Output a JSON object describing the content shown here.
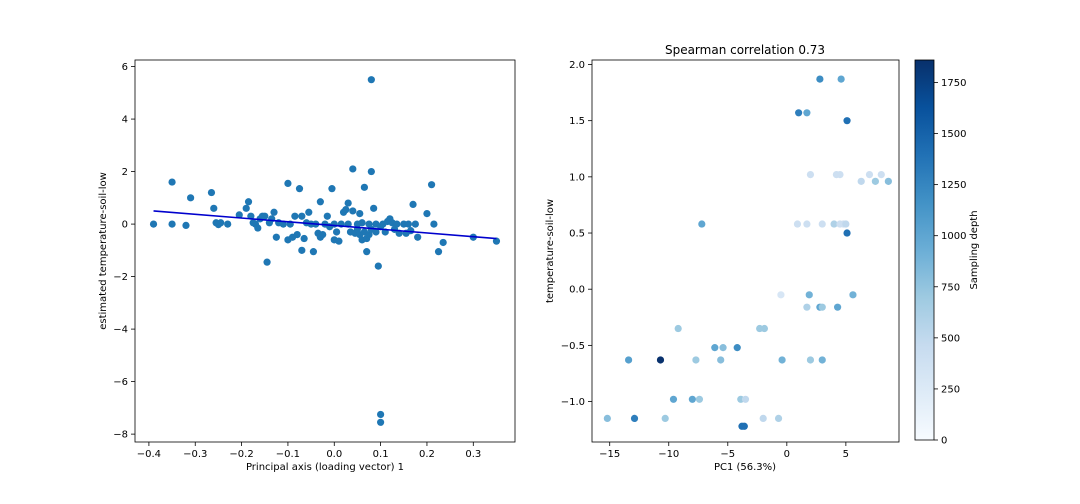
{
  "chart_data": [
    {
      "type": "scatter",
      "title": "",
      "xlabel": "Principal axis (loading vector) 1",
      "ylabel": "estimated temperature-soil-low",
      "xlim": [
        -0.43,
        0.39
      ],
      "ylim": [
        -8.3,
        6.25
      ],
      "xticks": [
        -0.4,
        -0.3,
        -0.2,
        -0.1,
        0.0,
        0.1,
        0.2,
        0.3
      ],
      "xtick_labels": [
        "−0.4",
        "−0.3",
        "−0.2",
        "−0.1",
        "0.0",
        "0.1",
        "0.2",
        "0.3"
      ],
      "yticks": [
        -8,
        -6,
        -4,
        -2,
        0,
        2,
        4,
        6
      ],
      "ytick_labels": [
        "−8",
        "−6",
        "−4",
        "−2",
        "0",
        "2",
        "4",
        "6"
      ],
      "point_color": "#1f77b4",
      "fit_line": {
        "color": "#0000cd",
        "x": [
          -0.39,
          0.35
        ],
        "y": [
          0.5,
          -0.55
        ]
      },
      "points": [
        [
          -0.39,
          0.0
        ],
        [
          -0.35,
          1.6
        ],
        [
          -0.35,
          0.0
        ],
        [
          -0.32,
          -0.05
        ],
        [
          -0.31,
          1.0
        ],
        [
          -0.265,
          1.2
        ],
        [
          -0.26,
          0.6
        ],
        [
          -0.255,
          0.05
        ],
        [
          -0.25,
          -0.02
        ],
        [
          -0.245,
          0.05
        ],
        [
          -0.23,
          0.0
        ],
        [
          -0.205,
          0.35
        ],
        [
          -0.19,
          0.6
        ],
        [
          -0.185,
          0.85
        ],
        [
          -0.18,
          0.3
        ],
        [
          -0.175,
          0.05
        ],
        [
          -0.17,
          0.0
        ],
        [
          -0.165,
          -0.15
        ],
        [
          -0.16,
          0.2
        ],
        [
          -0.155,
          0.3
        ],
        [
          -0.15,
          0.3
        ],
        [
          -0.145,
          -1.45
        ],
        [
          -0.14,
          0.05
        ],
        [
          -0.135,
          0.2
        ],
        [
          -0.13,
          0.45
        ],
        [
          -0.125,
          -0.5
        ],
        [
          -0.12,
          0.05
        ],
        [
          -0.11,
          0.0
        ],
        [
          -0.1,
          1.55
        ],
        [
          -0.1,
          -0.6
        ],
        [
          -0.095,
          0.0
        ],
        [
          -0.09,
          -0.5
        ],
        [
          -0.085,
          0.3
        ],
        [
          -0.08,
          -0.4
        ],
        [
          -0.075,
          1.35
        ],
        [
          -0.07,
          -1.0
        ],
        [
          -0.07,
          0.3
        ],
        [
          -0.065,
          -0.55
        ],
        [
          -0.06,
          0.05
        ],
        [
          -0.055,
          0.45
        ],
        [
          -0.05,
          0.0
        ],
        [
          -0.045,
          -1.05
        ],
        [
          -0.04,
          0.0
        ],
        [
          -0.035,
          -0.35
        ],
        [
          -0.03,
          0.85
        ],
        [
          -0.03,
          -0.5
        ],
        [
          -0.025,
          -0.4
        ],
        [
          -0.02,
          0.0
        ],
        [
          -0.015,
          0.3
        ],
        [
          -0.01,
          -0.1
        ],
        [
          -0.005,
          1.35
        ],
        [
          0.0,
          0.0
        ],
        [
          0.0,
          -0.6
        ],
        [
          0.005,
          -0.3
        ],
        [
          0.01,
          -0.65
        ],
        [
          0.015,
          0.0
        ],
        [
          0.02,
          0.45
        ],
        [
          0.025,
          0.55
        ],
        [
          0.03,
          0.8
        ],
        [
          0.03,
          0.0
        ],
        [
          0.035,
          -0.3
        ],
        [
          0.04,
          2.1
        ],
        [
          0.04,
          0.5
        ],
        [
          0.045,
          -0.35
        ],
        [
          0.05,
          0.0
        ],
        [
          0.05,
          -0.2
        ],
        [
          0.055,
          0.4
        ],
        [
          0.055,
          -0.4
        ],
        [
          0.06,
          -0.6
        ],
        [
          0.06,
          0.05
        ],
        [
          0.065,
          1.4
        ],
        [
          0.065,
          -0.3
        ],
        [
          0.07,
          -0.55
        ],
        [
          0.07,
          -1.05
        ],
        [
          0.075,
          0.0
        ],
        [
          0.075,
          -0.4
        ],
        [
          0.08,
          5.5
        ],
        [
          0.08,
          2.0
        ],
        [
          0.08,
          -0.2
        ],
        [
          0.085,
          0.6
        ],
        [
          0.09,
          0.0
        ],
        [
          0.09,
          -0.3
        ],
        [
          0.095,
          -1.6
        ],
        [
          0.1,
          -7.25
        ],
        [
          0.1,
          -7.55
        ],
        [
          0.1,
          -0.1
        ],
        [
          0.105,
          0.0
        ],
        [
          0.11,
          -0.3
        ],
        [
          0.115,
          0.1
        ],
        [
          0.12,
          0.2
        ],
        [
          0.125,
          0.05
        ],
        [
          0.13,
          -0.2
        ],
        [
          0.135,
          0.0
        ],
        [
          0.14,
          -0.35
        ],
        [
          0.15,
          0.0
        ],
        [
          0.155,
          -0.35
        ],
        [
          0.16,
          0.0
        ],
        [
          0.165,
          -0.25
        ],
        [
          0.17,
          0.75
        ],
        [
          0.175,
          0.0
        ],
        [
          0.18,
          -0.5
        ],
        [
          0.2,
          0.4
        ],
        [
          0.21,
          1.5
        ],
        [
          0.215,
          0.0
        ],
        [
          0.225,
          -1.05
        ],
        [
          0.235,
          -0.7
        ],
        [
          0.3,
          -0.5
        ],
        [
          0.35,
          -0.65
        ]
      ]
    },
    {
      "type": "scatter",
      "title": "Spearman correlation 0.73",
      "xlabel": "PC1 (56.3%)",
      "ylabel": "temperature-soil-low",
      "xlim": [
        -16.5,
        9.5
      ],
      "ylim": [
        -1.36,
        2.04
      ],
      "xticks": [
        -15,
        -10,
        -5,
        0,
        5
      ],
      "xtick_labels": [
        "−15",
        "−10",
        "−5",
        "0",
        "5"
      ],
      "yticks": [
        -1.0,
        -0.5,
        0.0,
        0.5,
        1.0,
        1.5,
        2.0
      ],
      "ytick_labels": [
        "−1.0",
        "−0.5",
        "0.0",
        "0.5",
        "1.0",
        "1.5",
        "2.0"
      ],
      "colorbar": {
        "label": "Sampling depth",
        "range": [
          0,
          1860
        ],
        "ticks": [
          0,
          250,
          500,
          750,
          1000,
          1250,
          1500,
          1750
        ],
        "tick_labels": [
          "0",
          "250",
          "500",
          "750",
          "1000",
          "1250",
          "1500",
          "1750"
        ],
        "colormap": "Blues",
        "colormap_stops": [
          "#f7fbff",
          "#deebf7",
          "#c6dbef",
          "#9ecae1",
          "#6baed6",
          "#4292c6",
          "#2171b5",
          "#08519c",
          "#08306b"
        ]
      },
      "points_xyc": [
        [
          -15.2,
          -1.15,
          800
        ],
        [
          -13.4,
          -0.63,
          1050
        ],
        [
          -12.9,
          -1.15,
          1300
        ],
        [
          -10.7,
          -0.63,
          1850
        ],
        [
          -10.3,
          -1.15,
          700
        ],
        [
          -9.6,
          -0.98,
          1000
        ],
        [
          -9.2,
          -0.35,
          700
        ],
        [
          -8.0,
          -0.98,
          1000
        ],
        [
          -7.7,
          -0.63,
          700
        ],
        [
          -7.4,
          -0.98,
          700
        ],
        [
          -7.2,
          0.58,
          1000
        ],
        [
          -6.1,
          -0.52,
          1000
        ],
        [
          -5.6,
          -0.63,
          800
        ],
        [
          -5.4,
          -0.52,
          800
        ],
        [
          -4.2,
          -0.52,
          1200
        ],
        [
          -3.9,
          -0.98,
          700
        ],
        [
          -3.8,
          -1.22,
          1400
        ],
        [
          -3.6,
          -1.22,
          1400
        ],
        [
          -3.5,
          -0.98,
          500
        ],
        [
          -2.3,
          -0.35,
          700
        ],
        [
          -2.0,
          -1.15,
          500
        ],
        [
          -1.9,
          -0.35,
          700
        ],
        [
          -0.7,
          -1.15,
          600
        ],
        [
          -0.4,
          -0.63,
          900
        ],
        [
          -0.5,
          -0.05,
          300
        ],
        [
          0.9,
          0.58,
          400
        ],
        [
          1.0,
          1.57,
          1300
        ],
        [
          1.7,
          -0.16,
          600
        ],
        [
          1.7,
          0.58,
          400
        ],
        [
          1.7,
          1.57,
          1000
        ],
        [
          1.9,
          -0.05,
          900
        ],
        [
          2.0,
          -0.63,
          700
        ],
        [
          2.0,
          1.02,
          400
        ],
        [
          2.8,
          1.87,
          1200
        ],
        [
          2.8,
          -0.16,
          1000
        ],
        [
          3.0,
          -0.16,
          700
        ],
        [
          3.0,
          -0.63,
          900
        ],
        [
          3.0,
          0.58,
          400
        ],
        [
          4.0,
          0.58,
          600
        ],
        [
          4.2,
          1.02,
          400
        ],
        [
          4.3,
          -0.16,
          1000
        ],
        [
          4.5,
          1.02,
          400
        ],
        [
          4.5,
          0.58,
          400
        ],
        [
          4.6,
          1.87,
          1000
        ],
        [
          4.8,
          0.58,
          400
        ],
        [
          5.0,
          0.58,
          500
        ],
        [
          5.1,
          1.5,
          1400
        ],
        [
          5.1,
          0.5,
          1400
        ],
        [
          5.6,
          -0.05,
          900
        ],
        [
          6.3,
          0.96,
          500
        ],
        [
          7.0,
          1.02,
          400
        ],
        [
          7.5,
          0.96,
          700
        ],
        [
          8.0,
          1.02,
          400
        ],
        [
          8.6,
          0.96,
          800
        ]
      ]
    }
  ]
}
